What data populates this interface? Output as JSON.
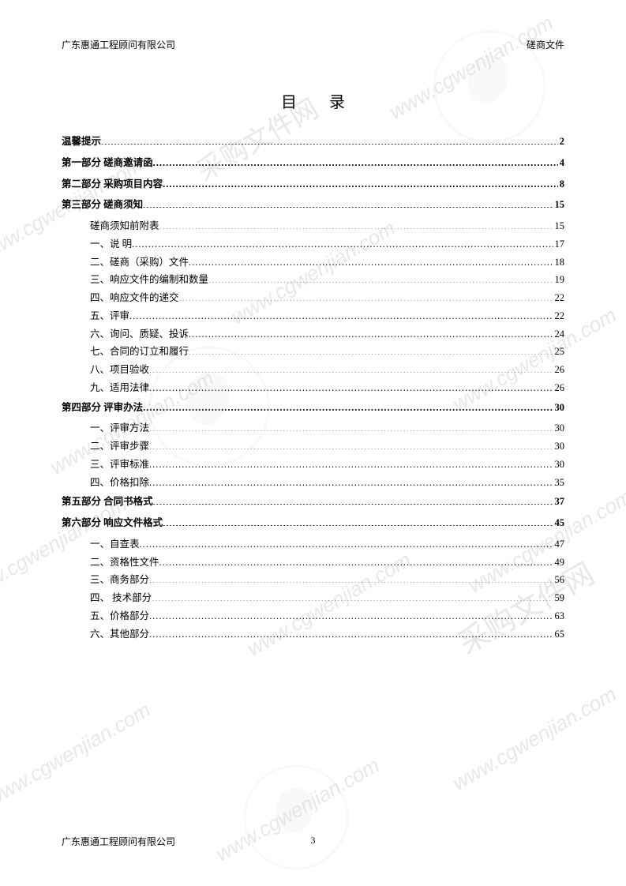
{
  "header": {
    "left": "广东惠通工程顾问有限公司",
    "right": "磋商文件"
  },
  "title": "目 录",
  "toc": [
    {
      "label": "温馨提示",
      "page": "2",
      "level": "bold"
    },
    {
      "label": "第一部分  磋商邀请函",
      "page": "4",
      "level": "bold"
    },
    {
      "label": "第二部分  采购项目内容",
      "page": "8",
      "level": "bold"
    },
    {
      "label": "第三部分  磋商须知",
      "page": "15",
      "level": "bold"
    },
    {
      "label": "磋商须知前附表",
      "page": "15",
      "level": "sub"
    },
    {
      "label": "一、说  明",
      "page": "17",
      "level": "sub"
    },
    {
      "label": "二、磋商（采购）文件",
      "page": "18",
      "level": "sub"
    },
    {
      "label": "三、响应文件的编制和数量",
      "page": "19",
      "level": "sub"
    },
    {
      "label": "四、响应文件的递交",
      "page": "22",
      "level": "sub"
    },
    {
      "label": "五、评审",
      "page": "22",
      "level": "sub"
    },
    {
      "label": "六、询问、质疑、投诉",
      "page": "24",
      "level": "sub"
    },
    {
      "label": "七、合同的订立和履行",
      "page": "25",
      "level": "sub"
    },
    {
      "label": "八、项目验收",
      "page": "26",
      "level": "sub"
    },
    {
      "label": "九、适用法律",
      "page": "26",
      "level": "sub"
    },
    {
      "label": "第四部分  评审办法",
      "page": "30",
      "level": "bold"
    },
    {
      "label": "一、评审方法",
      "page": "30",
      "level": "sub"
    },
    {
      "label": "二、评审步骤",
      "page": "30",
      "level": "sub"
    },
    {
      "label": "三、评审标准",
      "page": "30",
      "level": "sub"
    },
    {
      "label": "四、价格扣除",
      "page": "35",
      "level": "sub"
    },
    {
      "label": "第五部分  合同书格式",
      "page": "37",
      "level": "bold"
    },
    {
      "label": "第六部分  响应文件格式",
      "page": "45",
      "level": "bold"
    },
    {
      "label": "一、自查表",
      "page": "47",
      "level": "sub"
    },
    {
      "label": "二、资格性文件",
      "page": "49",
      "level": "sub"
    },
    {
      "label": "三、商务部分",
      "page": "56",
      "level": "sub"
    },
    {
      "label": "四、 技术部分",
      "page": "59",
      "level": "sub"
    },
    {
      "label": "五、价格部分",
      "page": "63",
      "level": "sub"
    },
    {
      "label": "六、其他部分",
      "page": "65",
      "level": "sub"
    }
  ],
  "footer": {
    "left": "广东惠通工程顾问有限公司",
    "page": "3"
  },
  "watermark_text": "www.cgwenjian.com",
  "watermark_label": "采购文件网",
  "colors": {
    "text": "#000000",
    "background": "#ffffff",
    "watermark": "#e8e8e8"
  },
  "typography": {
    "body_fontsize": 12.5,
    "title_fontsize": 20,
    "header_fontsize": 12,
    "font_family": "SimSun"
  }
}
